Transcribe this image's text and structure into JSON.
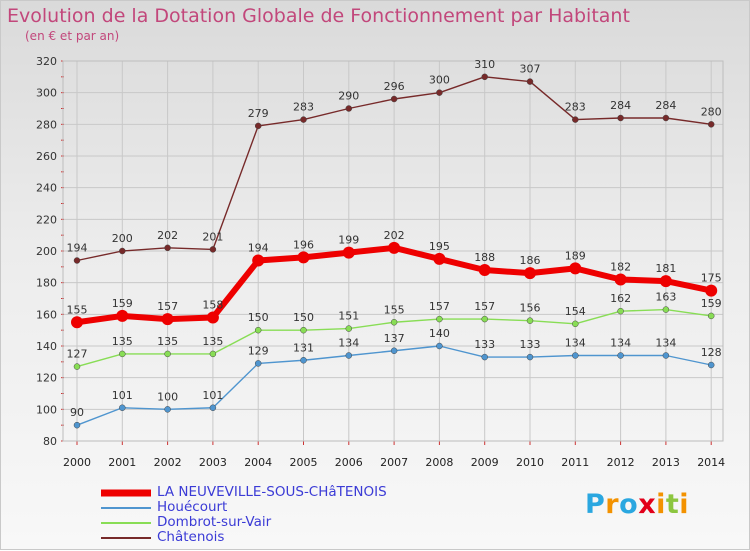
{
  "header": {
    "title": "Evolution de la Dotation Globale de Fonctionnement par Habitant",
    "subtitle": "(en € et par an)"
  },
  "chart_data": {
    "type": "line",
    "title": "Evolution de la Dotation Globale de Fonctionnement par Habitant",
    "subtitle": "(en € et par an)",
    "xlabel": "",
    "ylabel": "",
    "ylim": [
      80,
      320
    ],
    "yticks": [
      80,
      100,
      120,
      140,
      160,
      180,
      200,
      220,
      240,
      260,
      280,
      300,
      320
    ],
    "grid": true,
    "legend_position": "bottom-left",
    "x": [
      "2000",
      "2001",
      "2002",
      "2003",
      "2004",
      "2005",
      "2006",
      "2007",
      "2008",
      "2009",
      "2010",
      "2011",
      "2012",
      "2013",
      "2014"
    ],
    "series": [
      {
        "name": "LA NEUVEVILLE-SOUS-CHâTENOIS",
        "color": "#ee0000",
        "values": [
          155,
          159,
          157,
          158,
          194,
          196,
          199,
          202,
          195,
          188,
          186,
          189,
          182,
          181,
          175
        ]
      },
      {
        "name": "Houécourt",
        "color": "#4f95cf",
        "values": [
          90,
          101,
          100,
          101,
          129,
          131,
          134,
          137,
          140,
          133,
          133,
          134,
          134,
          134,
          128
        ]
      },
      {
        "name": "Dombrot-sur-Vair",
        "color": "#88dd55",
        "values": [
          127,
          135,
          135,
          135,
          150,
          150,
          151,
          155,
          157,
          157,
          156,
          154,
          162,
          163,
          159
        ]
      },
      {
        "name": "Châtenois",
        "color": "#772a2a",
        "values": [
          194,
          200,
          202,
          201,
          279,
          283,
          290,
          296,
          300,
          310,
          307,
          283,
          284,
          284,
          280
        ]
      }
    ]
  },
  "legend": {
    "label_color": "#3b3bd6",
    "items": [
      {
        "label": "LA NEUVEVILLE-SOUS-CHâTENOIS",
        "color": "#ee0000"
      },
      {
        "label": "Houécourt",
        "color": "#4f95cf"
      },
      {
        "label": "Dombrot-sur-Vair",
        "color": "#88dd55"
      },
      {
        "label": "Châtenois",
        "color": "#772a2a"
      }
    ]
  },
  "brand": {
    "name": "Proxiti",
    "letters": [
      "P",
      "r",
      "o",
      "x",
      "i",
      "t",
      "i"
    ],
    "letter_colors": [
      "#2aa7e0",
      "#f39200",
      "#2aa7e0",
      "#e2001a",
      "#f39200",
      "#8cc63f",
      "#f39200"
    ]
  }
}
